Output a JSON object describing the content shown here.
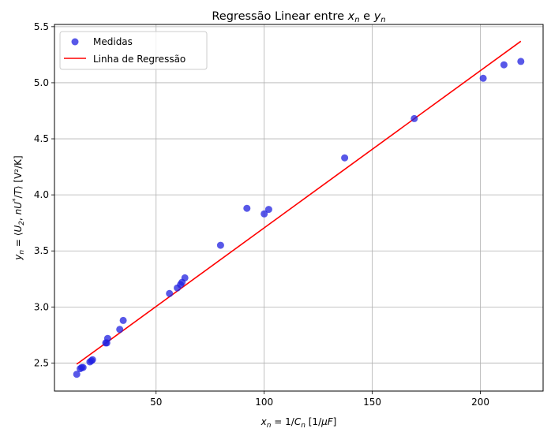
{
  "chart_data": {
    "type": "scatter",
    "title": "Regressão Linear entre x_n e y_n",
    "title_parts": {
      "prefix": "Regressão Linear entre ",
      "x_sym": "x",
      "x_sub": "n",
      "mid": " e ",
      "y_sym": "y",
      "y_sub": "n"
    },
    "xlabel": "x_n = 1/C_n [1/μF]",
    "xlabel_parts": {
      "sym": "x",
      "sub": "n",
      "eq": " = 1/",
      "c_sym": "C",
      "c_sub": "n",
      "unit": " [1/",
      "mu": "μF",
      "close": "]"
    },
    "ylabel": "y_n = ⟨U_2, nU*/T⟩ [V²/K]",
    "ylabel_parts": {
      "sym": "y",
      "sub": "n",
      "eq": " = ⟨",
      "u2": "U",
      "u2_sub": "2",
      "sep": ", ",
      "n": "nU",
      "star": "*",
      "slash": "/",
      "t": "T",
      "close": "⟩ [V²/K]"
    },
    "xlim": [
      3,
      229
    ],
    "ylim": [
      2.25,
      5.52
    ],
    "xticks": [
      50,
      100,
      150,
      200
    ],
    "yticks": [
      2.5,
      3.0,
      3.5,
      4.0,
      4.5,
      5.0,
      5.5
    ],
    "xtick_labels": [
      "50",
      "100",
      "150",
      "200"
    ],
    "ytick_labels": [
      "2.5",
      "3.0",
      "3.5",
      "4.0",
      "4.5",
      "5.0",
      "5.5"
    ],
    "grid": true,
    "legend_position": "top-left",
    "series": [
      {
        "name": "Medidas",
        "kind": "scatter",
        "color": "#2020e0",
        "points": [
          [
            13.3,
            2.4
          ],
          [
            14.9,
            2.45
          ],
          [
            15.6,
            2.46
          ],
          [
            16.2,
            2.46
          ],
          [
            19.4,
            2.51
          ],
          [
            20.1,
            2.52
          ],
          [
            20.6,
            2.53
          ],
          [
            26.7,
            2.68
          ],
          [
            27.2,
            2.68
          ],
          [
            27.6,
            2.72
          ],
          [
            33.2,
            2.8
          ],
          [
            34.8,
            2.88
          ],
          [
            56.2,
            3.12
          ],
          [
            59.8,
            3.17
          ],
          [
            61.3,
            3.2
          ],
          [
            62.0,
            3.22
          ],
          [
            63.3,
            3.26
          ],
          [
            79.8,
            3.55
          ],
          [
            92.0,
            3.88
          ],
          [
            100.0,
            3.83
          ],
          [
            102.1,
            3.87
          ],
          [
            137.2,
            4.33
          ],
          [
            169.4,
            4.68
          ],
          [
            201.3,
            5.04
          ],
          [
            210.9,
            5.16
          ],
          [
            218.7,
            5.19
          ]
        ]
      },
      {
        "name": "Linha de Regressão",
        "kind": "line",
        "color": "#ff0000",
        "points": [
          [
            13.3,
            2.49
          ],
          [
            218.7,
            5.37
          ]
        ]
      }
    ]
  }
}
